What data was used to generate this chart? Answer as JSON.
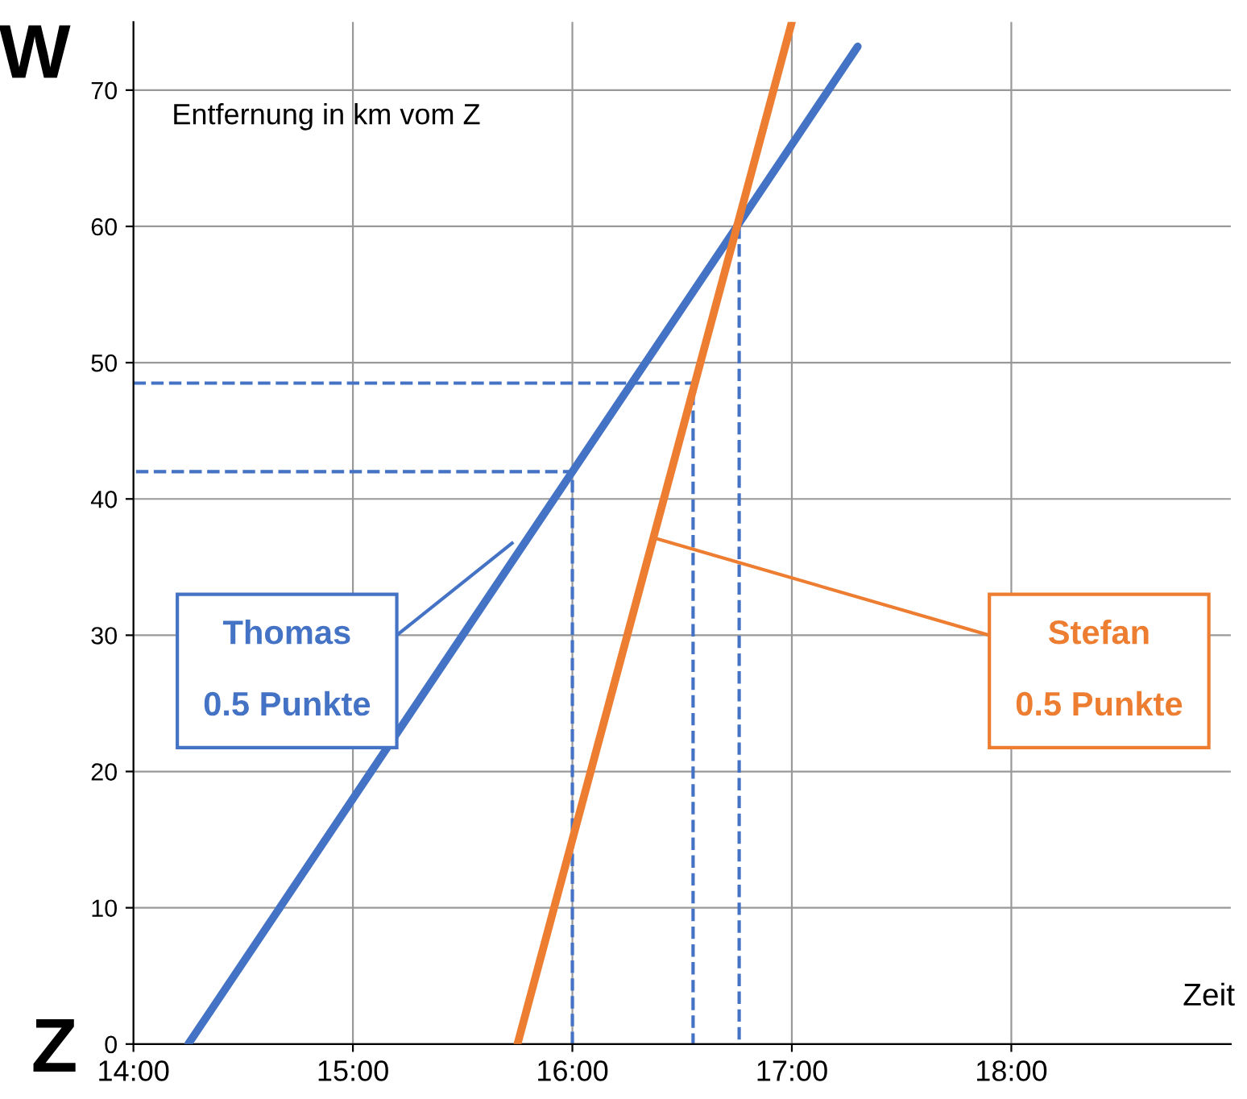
{
  "chart_data": {
    "type": "line",
    "ylabel": "W",
    "xlabel": "Zeit",
    "annotations": [
      "Entfernung in km vom Z",
      "Z",
      "Thomas",
      "0.5 Punkte",
      "Stefan",
      "0.5 Punkte"
    ],
    "series": [
      {
        "color": "#4472c4",
        "x": [
          14.25,
          17.3
        ],
        "values": [
          0,
          73.2
        ]
      },
      {
        "color": "#ed7d31",
        "x": [
          15.75,
          17.0
        ],
        "values": [
          0,
          75
        ]
      },
      {
        "type": "line",
        "line_style": "dashed",
        "color": "#4472c4",
        "x": [
          16.0,
          16.0,
          14.0
        ],
        "values": [
          0,
          42,
          42
        ]
      },
      {
        "type": "line",
        "line_style": "dashed",
        "color": "#4472c4",
        "x": [
          14.0,
          16.55,
          16.55
        ],
        "values": [
          48.5,
          48.5,
          0
        ]
      },
      {
        "type": "line",
        "line_style": "dashed",
        "color": "#4472c4",
        "x": [
          16.76,
          16.76
        ],
        "values": [
          60,
          0
        ]
      }
    ],
    "xlim": [
      14,
      19
    ],
    "ylim": [
      0,
      75
    ],
    "xticks": [
      {
        "value": 14,
        "label": "14:00"
      },
      {
        "value": 15,
        "label": "15:00"
      },
      {
        "value": 16,
        "label": "16:00"
      },
      {
        "value": 17,
        "label": "17:00"
      },
      {
        "value": 18,
        "label": "18:00"
      }
    ],
    "yticks": [
      0,
      10,
      20,
      30,
      40,
      50,
      60,
      70
    ],
    "grid": true,
    "marker": "none"
  }
}
